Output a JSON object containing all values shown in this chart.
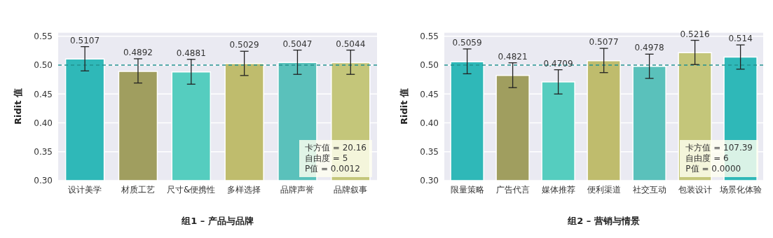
{
  "chart_data": [
    {
      "type": "bar",
      "xlabel": "组1 – 产品与品牌",
      "ylabel": "Ridit 值",
      "categories": [
        "设计美学",
        "材质工艺",
        "尺寸&便携性",
        "多样选择",
        "品牌声誉",
        "品牌叙事"
      ],
      "values": [
        0.5107,
        0.4892,
        0.4881,
        0.5029,
        0.5047,
        0.5044
      ],
      "colors": [
        "#2fb8b8",
        "#a09e5f",
        "#55cdbf",
        "#bfbc6d",
        "#5ac1bb",
        "#c4c67a"
      ],
      "errors": [
        [
          0.49,
          0.532
        ],
        [
          0.469,
          0.511
        ],
        [
          0.467,
          0.51
        ],
        [
          0.482,
          0.524
        ],
        [
          0.484,
          0.526
        ],
        [
          0.484,
          0.526
        ]
      ],
      "data_labels": true,
      "ylim": [
        0.3,
        0.557
      ],
      "yticks": [
        {
          "value": 0.3,
          "label": "0.30"
        },
        0.35,
        {
          "value": 0.4,
          "label": "0.40"
        },
        0.45,
        {
          "value": 0.5,
          "label": "0.50"
        },
        0.55
      ],
      "grid": "y",
      "ref_lines": [
        {
          "axis": "y",
          "value": 0.5,
          "color": "#22918f",
          "line_style": "dashed"
        }
      ],
      "annotations": [
        "卡方值 = 20.16",
        "自由度 = 5",
        "P值 = 0.0012"
      ]
    },
    {
      "type": "bar",
      "xlabel": "组2 – 营销与情景",
      "ylabel": "Ridit 值",
      "categories": [
        "限量策略",
        "广告代言",
        "媒体推荐",
        "便利渠道",
        "社交互动",
        "包装设计",
        "场景化体验"
      ],
      "values": [
        0.5059,
        0.4821,
        0.4709,
        0.5077,
        0.4978,
        0.5216,
        0.514
      ],
      "colors": [
        "#2fb8b8",
        "#a09e5f",
        "#55cdbf",
        "#bfbc6d",
        "#5ac1bb",
        "#c4c67a",
        "#2fb8b8"
      ],
      "errors": [
        [
          0.485,
          0.528
        ],
        [
          0.461,
          0.504
        ],
        [
          0.45,
          0.492
        ],
        [
          0.487,
          0.529
        ],
        [
          0.477,
          0.519
        ],
        [
          0.501,
          0.543
        ],
        [
          0.493,
          0.535
        ]
      ],
      "data_labels": true,
      "ylim": [
        0.3,
        0.557
      ],
      "yticks": [
        {
          "value": 0.3,
          "label": "0.30"
        },
        0.35,
        {
          "value": 0.4,
          "label": "0.40"
        },
        0.45,
        {
          "value": 0.5,
          "label": "0.50"
        },
        0.55
      ],
      "grid": "y",
      "ref_lines": [
        {
          "axis": "y",
          "value": 0.5,
          "color": "#22918f",
          "line_style": "dashed"
        }
      ],
      "annotations": [
        "卡方值 = 107.39",
        "自由度 = 6",
        "P值 = 0.0000"
      ]
    }
  ]
}
